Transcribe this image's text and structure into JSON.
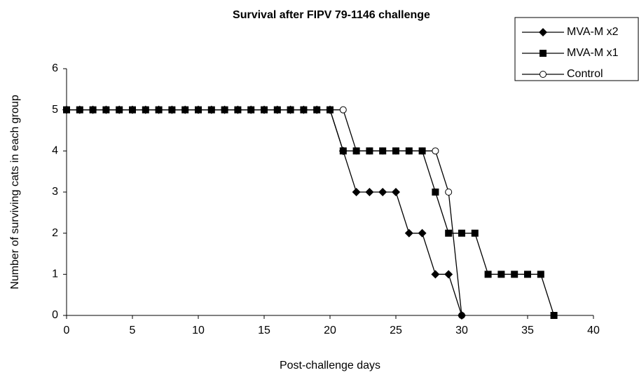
{
  "chart_data": {
    "type": "line",
    "title": "Survival after FIPV 79-1146 challenge",
    "xlabel": "Post-challenge days",
    "ylabel": "Number of surviving cats in each group",
    "x": [
      0,
      1,
      2,
      3,
      4,
      5,
      6,
      7,
      8,
      9,
      10,
      11,
      12,
      13,
      14,
      15,
      16,
      17,
      18,
      19,
      20,
      21,
      22,
      23,
      24,
      25,
      26,
      27,
      28,
      29,
      30,
      31,
      32,
      33,
      34,
      35,
      36,
      37
    ],
    "series": [
      {
        "name": "Control",
        "color": "#000000",
        "marker": "circle",
        "values": [
          5,
          5,
          5,
          5,
          5,
          5,
          5,
          5,
          5,
          5,
          5,
          5,
          5,
          5,
          5,
          5,
          5,
          5,
          5,
          5,
          5,
          5,
          4,
          4,
          4,
          4,
          4,
          4,
          4,
          3,
          0,
          null,
          null,
          null,
          null,
          null,
          null,
          null
        ]
      },
      {
        "name": "MVA-M x1",
        "color": "#000000",
        "marker": "square",
        "values": [
          5,
          5,
          5,
          5,
          5,
          5,
          5,
          5,
          5,
          5,
          5,
          5,
          5,
          5,
          5,
          5,
          5,
          5,
          5,
          5,
          5,
          4,
          4,
          4,
          4,
          4,
          4,
          4,
          3,
          2,
          2,
          2,
          1,
          1,
          1,
          1,
          1,
          0
        ]
      },
      {
        "name": "MVA-M x2",
        "color": "#000000",
        "marker": "diamond",
        "values": [
          5,
          5,
          5,
          5,
          5,
          5,
          5,
          5,
          5,
          5,
          5,
          5,
          5,
          5,
          5,
          5,
          5,
          5,
          5,
          5,
          5,
          4,
          3,
          3,
          3,
          3,
          2,
          2,
          1,
          1,
          0,
          null,
          null,
          null,
          null,
          null,
          null,
          null
        ]
      }
    ],
    "legend_order": [
      "MVA-M x2",
      "MVA-M x1",
      "Control"
    ],
    "xlim": [
      0,
      40
    ],
    "xticks": [
      0,
      5,
      10,
      15,
      20,
      25,
      30,
      35,
      40
    ],
    "ylim": [
      0,
      6
    ],
    "yticks": [
      0,
      1,
      2,
      3,
      4,
      5,
      6
    ],
    "grid": false,
    "legend": "upper right"
  }
}
